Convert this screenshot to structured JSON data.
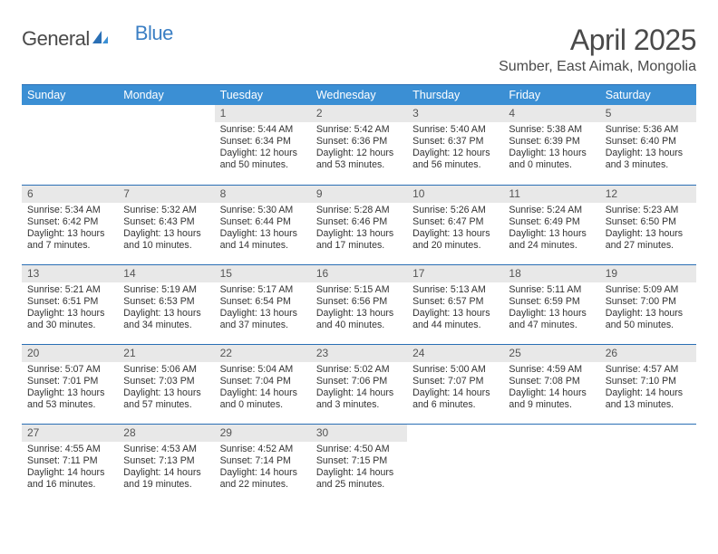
{
  "logo": {
    "text_general": "General",
    "text_blue": "Blue"
  },
  "title": "April 2025",
  "location": "Sumber, East Aimak, Mongolia",
  "colors": {
    "header_bg": "#3b8fd4",
    "header_text": "#ffffff",
    "border": "#2a6fb5",
    "daynum_bg": "#e8e8e8",
    "body_text": "#333333",
    "logo_gray": "#4a4a4a",
    "logo_blue": "#3b7fc4"
  },
  "weekdays": [
    "Sunday",
    "Monday",
    "Tuesday",
    "Wednesday",
    "Thursday",
    "Friday",
    "Saturday"
  ],
  "weeks": [
    [
      null,
      null,
      {
        "n": "1",
        "sr": "5:44 AM",
        "ss": "6:34 PM",
        "dl": "12 hours and 50 minutes."
      },
      {
        "n": "2",
        "sr": "5:42 AM",
        "ss": "6:36 PM",
        "dl": "12 hours and 53 minutes."
      },
      {
        "n": "3",
        "sr": "5:40 AM",
        "ss": "6:37 PM",
        "dl": "12 hours and 56 minutes."
      },
      {
        "n": "4",
        "sr": "5:38 AM",
        "ss": "6:39 PM",
        "dl": "13 hours and 0 minutes."
      },
      {
        "n": "5",
        "sr": "5:36 AM",
        "ss": "6:40 PM",
        "dl": "13 hours and 3 minutes."
      }
    ],
    [
      {
        "n": "6",
        "sr": "5:34 AM",
        "ss": "6:42 PM",
        "dl": "13 hours and 7 minutes."
      },
      {
        "n": "7",
        "sr": "5:32 AM",
        "ss": "6:43 PM",
        "dl": "13 hours and 10 minutes."
      },
      {
        "n": "8",
        "sr": "5:30 AM",
        "ss": "6:44 PM",
        "dl": "13 hours and 14 minutes."
      },
      {
        "n": "9",
        "sr": "5:28 AM",
        "ss": "6:46 PM",
        "dl": "13 hours and 17 minutes."
      },
      {
        "n": "10",
        "sr": "5:26 AM",
        "ss": "6:47 PM",
        "dl": "13 hours and 20 minutes."
      },
      {
        "n": "11",
        "sr": "5:24 AM",
        "ss": "6:49 PM",
        "dl": "13 hours and 24 minutes."
      },
      {
        "n": "12",
        "sr": "5:23 AM",
        "ss": "6:50 PM",
        "dl": "13 hours and 27 minutes."
      }
    ],
    [
      {
        "n": "13",
        "sr": "5:21 AM",
        "ss": "6:51 PM",
        "dl": "13 hours and 30 minutes."
      },
      {
        "n": "14",
        "sr": "5:19 AM",
        "ss": "6:53 PM",
        "dl": "13 hours and 34 minutes."
      },
      {
        "n": "15",
        "sr": "5:17 AM",
        "ss": "6:54 PM",
        "dl": "13 hours and 37 minutes."
      },
      {
        "n": "16",
        "sr": "5:15 AM",
        "ss": "6:56 PM",
        "dl": "13 hours and 40 minutes."
      },
      {
        "n": "17",
        "sr": "5:13 AM",
        "ss": "6:57 PM",
        "dl": "13 hours and 44 minutes."
      },
      {
        "n": "18",
        "sr": "5:11 AM",
        "ss": "6:59 PM",
        "dl": "13 hours and 47 minutes."
      },
      {
        "n": "19",
        "sr": "5:09 AM",
        "ss": "7:00 PM",
        "dl": "13 hours and 50 minutes."
      }
    ],
    [
      {
        "n": "20",
        "sr": "5:07 AM",
        "ss": "7:01 PM",
        "dl": "13 hours and 53 minutes."
      },
      {
        "n": "21",
        "sr": "5:06 AM",
        "ss": "7:03 PM",
        "dl": "13 hours and 57 minutes."
      },
      {
        "n": "22",
        "sr": "5:04 AM",
        "ss": "7:04 PM",
        "dl": "14 hours and 0 minutes."
      },
      {
        "n": "23",
        "sr": "5:02 AM",
        "ss": "7:06 PM",
        "dl": "14 hours and 3 minutes."
      },
      {
        "n": "24",
        "sr": "5:00 AM",
        "ss": "7:07 PM",
        "dl": "14 hours and 6 minutes."
      },
      {
        "n": "25",
        "sr": "4:59 AM",
        "ss": "7:08 PM",
        "dl": "14 hours and 9 minutes."
      },
      {
        "n": "26",
        "sr": "4:57 AM",
        "ss": "7:10 PM",
        "dl": "14 hours and 13 minutes."
      }
    ],
    [
      {
        "n": "27",
        "sr": "4:55 AM",
        "ss": "7:11 PM",
        "dl": "14 hours and 16 minutes."
      },
      {
        "n": "28",
        "sr": "4:53 AM",
        "ss": "7:13 PM",
        "dl": "14 hours and 19 minutes."
      },
      {
        "n": "29",
        "sr": "4:52 AM",
        "ss": "7:14 PM",
        "dl": "14 hours and 22 minutes."
      },
      {
        "n": "30",
        "sr": "4:50 AM",
        "ss": "7:15 PM",
        "dl": "14 hours and 25 minutes."
      },
      null,
      null,
      null
    ]
  ],
  "labels": {
    "sunrise": "Sunrise:",
    "sunset": "Sunset:",
    "daylight": "Daylight:"
  }
}
